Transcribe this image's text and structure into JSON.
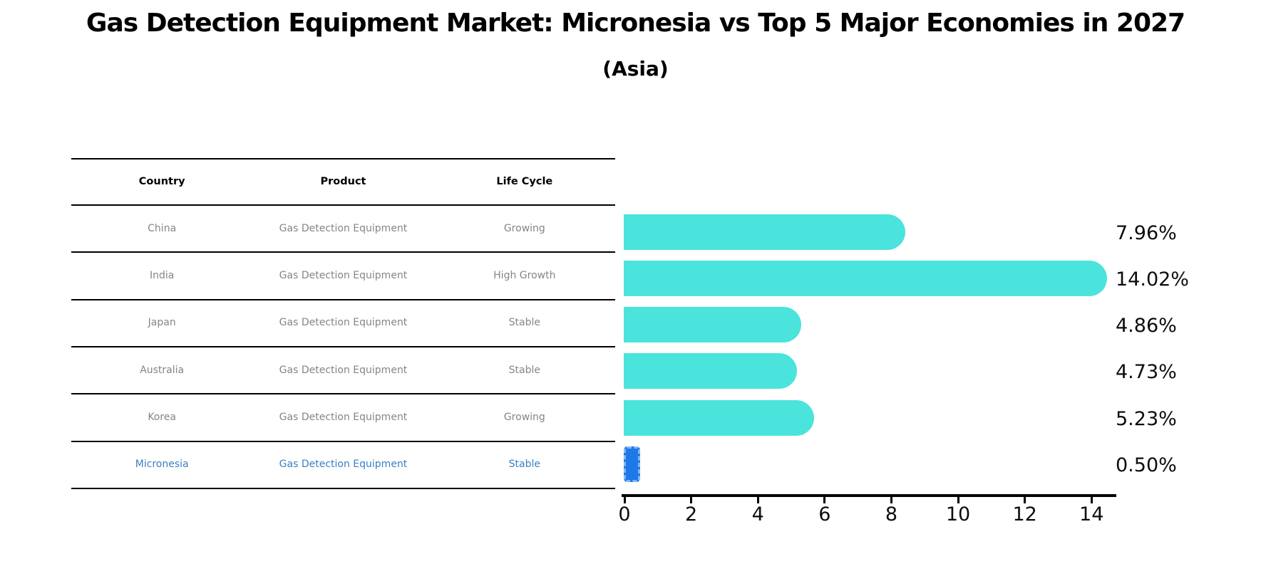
{
  "title": "Gas Detection Equipment Market: Micronesia vs Top 5 Major Economies in 2027",
  "subtitle": "(Asia)",
  "table": {
    "columns": [
      "Country",
      "Product",
      "Life Cycle"
    ],
    "rows": [
      {
        "country": "China",
        "product": "Gas Detection Equipment",
        "life_cycle": "Growing",
        "highlighted": false
      },
      {
        "country": "India",
        "product": "Gas Detection Equipment",
        "life_cycle": "High Growth",
        "highlighted": false
      },
      {
        "country": "Japan",
        "product": "Gas Detection Equipment",
        "life_cycle": "Stable",
        "highlighted": false
      },
      {
        "country": "Australia",
        "product": "Gas Detection Equipment",
        "life_cycle": "Stable",
        "highlighted": false
      },
      {
        "country": "Korea",
        "product": "Gas Detection Equipment",
        "life_cycle": "Growing",
        "highlighted": false
      },
      {
        "country": "Micronesia",
        "product": "Gas Detection Equipment",
        "life_cycle": "Stable",
        "highlighted": true
      }
    ]
  },
  "chart_data": {
    "type": "bar",
    "orientation": "horizontal",
    "title": "Gas Detection Equipment Market: Micronesia vs Top 5 Major Economies in 2027",
    "subtitle": "(Asia)",
    "categories": [
      "China",
      "India",
      "Japan",
      "Australia",
      "Korea",
      "Micronesia"
    ],
    "values": [
      7.96,
      14.02,
      4.86,
      4.73,
      5.23,
      0.5
    ],
    "value_labels": [
      "7.96%",
      "14.02%",
      "4.86%",
      "4.73%",
      "5.23%",
      "0.50%"
    ],
    "x_ticks": [
      0,
      2,
      4,
      6,
      8,
      10,
      12,
      14
    ],
    "xlim": [
      0,
      14.7
    ],
    "grid": false,
    "legend": "none",
    "bar_color": "#4ae4dc",
    "highlight_index": 5,
    "highlight_bar_color": "#1f78e8",
    "highlight_edge_color": "#82b8f2"
  },
  "colors": {
    "background": "#ffffff",
    "title_text": "#000000",
    "table_header_text": "#000000",
    "table_cell_text": "#858585",
    "highlight_row_text": "#3a80c2",
    "axis": "#000000"
  }
}
